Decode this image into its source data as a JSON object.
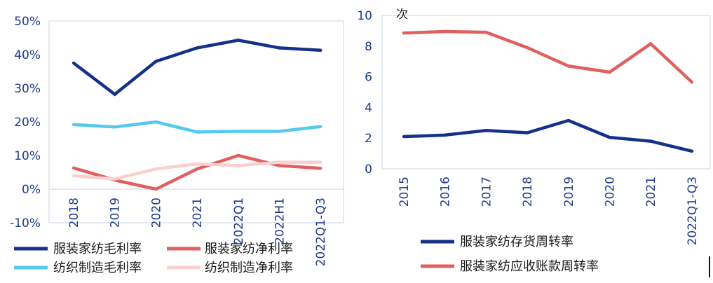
{
  "chart_data": [
    {
      "type": "line",
      "categories": [
        "2018",
        "2019",
        "2020",
        "2021",
        "2022Q1",
        "2022H1",
        "2022Q1-Q3"
      ],
      "ylim": [
        -10,
        50
      ],
      "yticks": [
        -10,
        0,
        10,
        20,
        30,
        40,
        50
      ],
      "ytick_labels": [
        "-10%",
        "0%",
        "10%",
        "20%",
        "30%",
        "40%",
        "50%"
      ],
      "series": [
        {
          "name": "服装家纺毛利率",
          "color": "#14308a",
          "values": [
            37.5,
            28.2,
            38.0,
            42.0,
            44.3,
            42.0,
            41.3
          ]
        },
        {
          "name": "服装家纺净利率",
          "color": "#e06060",
          "values": [
            6.3,
            2.7,
            0.0,
            6.0,
            10.0,
            7.0,
            6.2
          ]
        },
        {
          "name": "纺织制造毛利率",
          "color": "#55c8f0",
          "values": [
            19.2,
            18.5,
            20.0,
            17.0,
            17.2,
            17.2,
            18.6
          ]
        },
        {
          "name": "纺织制造净利率",
          "color": "#f8d0d0",
          "values": [
            4.0,
            3.0,
            6.0,
            7.5,
            7.0,
            8.0,
            8.0
          ]
        }
      ]
    },
    {
      "type": "line",
      "unit": "次",
      "categories": [
        "2015",
        "2016",
        "2017",
        "2018",
        "2019",
        "2020",
        "2021",
        "2022Q1-Q3"
      ],
      "ylim": [
        0,
        10
      ],
      "yticks": [
        0,
        2,
        4,
        6,
        8,
        10
      ],
      "ytick_labels": [
        "0",
        "2",
        "4",
        "6",
        "8",
        "10"
      ],
      "series": [
        {
          "name": "服装家纺存货周转率",
          "color": "#14308a",
          "values": [
            2.1,
            2.2,
            2.5,
            2.35,
            3.15,
            2.05,
            1.8,
            1.15
          ]
        },
        {
          "name": "服装家纺应收账款周转率",
          "color": "#e06060",
          "values": [
            8.85,
            8.95,
            8.9,
            7.9,
            6.7,
            6.3,
            8.15,
            5.65
          ]
        }
      ]
    }
  ]
}
